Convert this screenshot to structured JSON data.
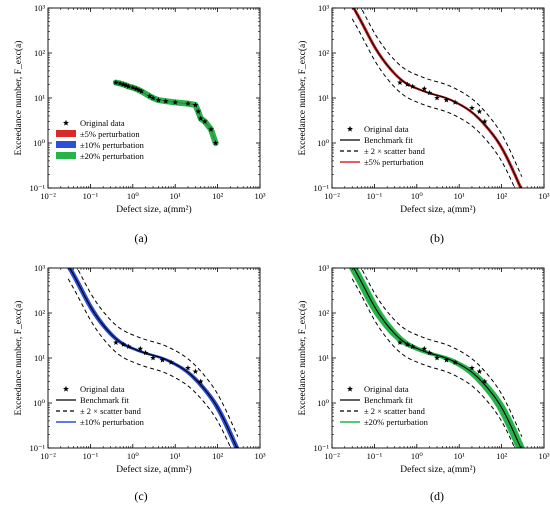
{
  "chart_data": [
    {
      "panel_label": "(a)",
      "type": "line",
      "xlabel": "Defect  size,  a(mm²)",
      "ylabel": "Exceedance  number,  F_exc(a)",
      "xscale": "log",
      "yscale": "log",
      "xlim": [
        0.01,
        1000
      ],
      "ylim": [
        0.1,
        1000
      ],
      "xticks": [
        "10⁻²",
        "10⁻¹",
        "10⁰",
        "10¹",
        "10²",
        "10³"
      ],
      "yticks": [
        "10⁻¹",
        "10⁰",
        "10¹",
        "10²",
        "10³"
      ],
      "legend_position": "lower-left",
      "legend": [
        "Original data",
        "±5% perturbation",
        "±10% perturbation",
        "±20% perturbation"
      ],
      "series": [
        {
          "name": "Original data",
          "kind": "markers",
          "x": [
            0.4,
            0.5,
            0.6,
            0.7,
            0.8,
            1.0,
            1.2,
            1.4,
            1.6,
            2.5,
            3.0,
            4.0,
            6.0,
            10,
            20,
            30,
            35,
            40,
            50,
            70,
            90
          ],
          "y": [
            22,
            21,
            20,
            19,
            18,
            17,
            16,
            15,
            14,
            11,
            10,
            9,
            8.5,
            8,
            7.5,
            7,
            5,
            3.5,
            3,
            2,
            1
          ],
          "color": "#000000"
        },
        {
          "name": "±5% perturbation",
          "kind": "band",
          "color": "#d92a2a"
        },
        {
          "name": "±10% perturbation",
          "kind": "band",
          "color": "#2a4fd9"
        },
        {
          "name": "±20% perturbation",
          "kind": "band",
          "color": "#26b34a"
        }
      ]
    },
    {
      "panel_label": "(b)",
      "type": "line",
      "xlabel": "Defect  size,  a(mm²)",
      "ylabel": "Exceedance  number,  F_exc(a)",
      "xscale": "log",
      "yscale": "log",
      "xlim": [
        0.01,
        1000
      ],
      "ylim": [
        0.1,
        1000
      ],
      "xticks": [
        "10⁻²",
        "10⁻¹",
        "10⁰",
        "10¹",
        "10²",
        "10³"
      ],
      "yticks": [
        "10⁻¹",
        "10⁰",
        "10¹",
        "10²",
        "10³"
      ],
      "legend_position": "lower-left",
      "legend": [
        "Original data",
        "Benchmark fit",
        "± 2 × scatter band",
        "±5% perturbation"
      ],
      "perturbation_color": "#d92a2a",
      "perturbation_spread": 0.05,
      "series": [
        {
          "name": "Original data",
          "kind": "markers",
          "x": [
            0.4,
            0.6,
            0.8,
            1.5,
            2.0,
            3.0,
            5.0,
            8.0,
            20,
            30,
            40
          ],
          "y": [
            22,
            20,
            18,
            16,
            13,
            10,
            9,
            8,
            6,
            5,
            3
          ],
          "color": "#000000"
        },
        {
          "name": "Benchmark fit",
          "kind": "line",
          "color": "#000000",
          "x": [
            0.03,
            0.05,
            0.1,
            0.2,
            0.5,
            1,
            2,
            5,
            10,
            20,
            50,
            100,
            200,
            300
          ],
          "y": [
            1150,
            480,
            140,
            54,
            22.8,
            16.3,
            12.8,
            9.9,
            7.3,
            4.8,
            1.99,
            0.79,
            0.21,
            0.089
          ]
        },
        {
          "name": "± 2 × scatter band",
          "kind": "dashed",
          "color": "#000000",
          "factor": 2
        }
      ]
    },
    {
      "panel_label": "(c)",
      "type": "line",
      "xlabel": "Defect  size,  a(mm²)",
      "ylabel": "Exceedance  number,  F_exc(a)",
      "xscale": "log",
      "yscale": "log",
      "xlim": [
        0.01,
        1000
      ],
      "ylim": [
        0.1,
        1000
      ],
      "xticks": [
        "10⁻²",
        "10⁻¹",
        "10⁰",
        "10¹",
        "10²",
        "10³"
      ],
      "yticks": [
        "10⁻¹",
        "10⁰",
        "10¹",
        "10²",
        "10³"
      ],
      "legend_position": "lower-left",
      "legend": [
        "Original data",
        "Benchmark fit",
        "± 2 × scatter band",
        "±10% perturbation"
      ],
      "perturbation_color": "#2a4fd9",
      "perturbation_spread": 0.1,
      "series": [
        {
          "name": "Original data",
          "kind": "markers",
          "x": [
            0.4,
            0.6,
            0.8,
            1.5,
            2.0,
            3.0,
            5.0,
            8.0,
            20,
            30,
            40
          ],
          "y": [
            22,
            20,
            18,
            16,
            13,
            10,
            9,
            8,
            6,
            5,
            3
          ],
          "color": "#000000"
        },
        {
          "name": "Benchmark fit",
          "kind": "line",
          "color": "#000000",
          "x": [
            0.03,
            0.05,
            0.1,
            0.2,
            0.5,
            1,
            2,
            5,
            10,
            20,
            50,
            100,
            200,
            300
          ],
          "y": [
            1150,
            480,
            140,
            54,
            22.8,
            16.3,
            12.8,
            9.9,
            7.3,
            4.8,
            1.99,
            0.79,
            0.21,
            0.089
          ]
        },
        {
          "name": "± 2 × scatter band",
          "kind": "dashed",
          "color": "#000000",
          "factor": 2
        }
      ]
    },
    {
      "panel_label": "(d)",
      "type": "line",
      "xlabel": "Defect  size,  a(mm²)",
      "ylabel": "Exceedance  number,  F_exc(a)",
      "xscale": "log",
      "yscale": "log",
      "xlim": [
        0.01,
        1000
      ],
      "ylim": [
        0.1,
        1000
      ],
      "xticks": [
        "10⁻²",
        "10⁻¹",
        "10⁰",
        "10¹",
        "10²",
        "10³"
      ],
      "yticks": [
        "10⁻¹",
        "10⁰",
        "10¹",
        "10²",
        "10³"
      ],
      "legend_position": "lower-left",
      "legend": [
        "Original data",
        "Benchmark fit",
        "± 2 × scatter band",
        "±20% perturbation"
      ],
      "perturbation_color": "#26b34a",
      "perturbation_spread": 0.2,
      "series": [
        {
          "name": "Original data",
          "kind": "markers",
          "x": [
            0.4,
            0.6,
            0.8,
            1.5,
            2.0,
            3.0,
            5.0,
            8.0,
            20,
            30,
            40
          ],
          "y": [
            22,
            20,
            18,
            16,
            13,
            10,
            9,
            8,
            6,
            5,
            3
          ],
          "color": "#000000"
        },
        {
          "name": "Benchmark fit",
          "kind": "line",
          "color": "#000000",
          "x": [
            0.03,
            0.05,
            0.1,
            0.2,
            0.5,
            1,
            2,
            5,
            10,
            20,
            50,
            100,
            200,
            300
          ],
          "y": [
            1150,
            480,
            140,
            54,
            22.8,
            16.3,
            12.8,
            9.9,
            7.3,
            4.8,
            1.99,
            0.79,
            0.21,
            0.089
          ]
        },
        {
          "name": "± 2 × scatter band",
          "kind": "dashed",
          "color": "#000000",
          "factor": 2
        }
      ]
    }
  ]
}
